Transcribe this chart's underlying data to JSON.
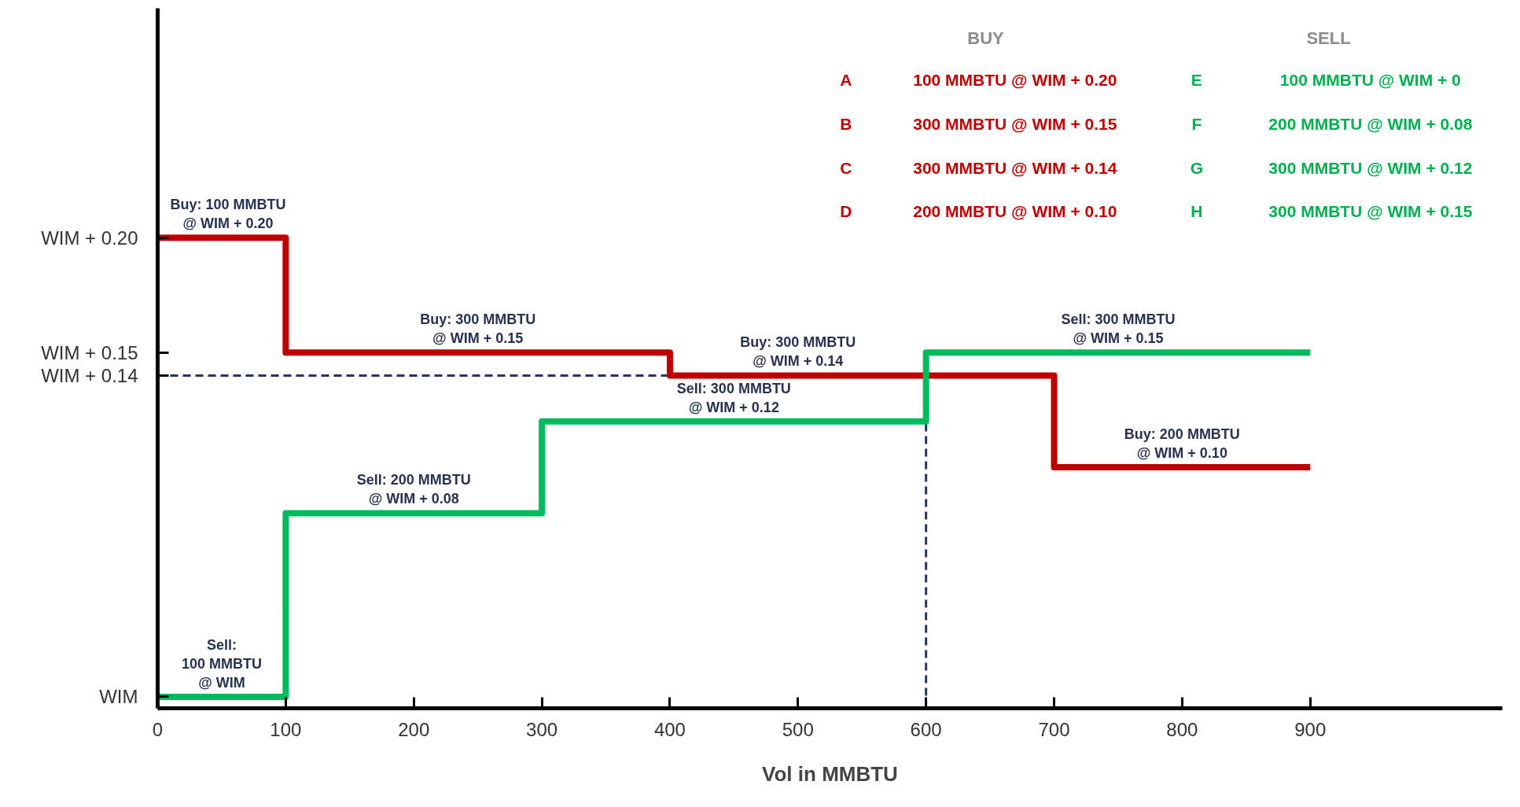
{
  "chart_data": [
    {
      "type": "step",
      "xlabel": "Vol in MMBTU",
      "xlim": [
        0,
        1050
      ],
      "ylim": [
        -0.005,
        0.3
      ],
      "xticks": [
        0,
        100,
        200,
        300,
        400,
        500,
        700,
        800,
        900
      ],
      "yticks": [
        {
          "value": 0,
          "label": "WIM"
        },
        {
          "value": 0.15,
          "label": "WIM + 0.15"
        },
        {
          "value": 0.2,
          "label": "WIM + 0.20"
        }
      ],
      "grid": false,
      "series": [
        {
          "color": "#c00000",
          "x": [
            0,
            100,
            400,
            700,
            900
          ],
          "values": [
            0.2,
            0.15,
            0.14,
            0.1,
            0.1
          ]
        },
        {
          "color": "#00bb5e",
          "x": [
            0,
            100,
            300,
            600,
            900
          ],
          "values": [
            0,
            0.08,
            0.12,
            0.15,
            0.15
          ]
        }
      ],
      "ref_lines": [
        {
          "axis": "y",
          "value": 0.14,
          "label": "WIM + 0.14",
          "color": "#1f3864",
          "line_style": "dashed"
        },
        {
          "axis": "x",
          "value": 600,
          "label": "600",
          "color": "#1f3864",
          "line_style": "dashed"
        }
      ],
      "annotations": [
        {
          "text": "Buy: 100 MMBTU\n@ WIM + 0.20",
          "x": 55,
          "y": 0.2
        },
        {
          "text": "Buy: 300 MMBTU\n@ WIM + 0.15",
          "x": 250,
          "y": 0.15
        },
        {
          "text": "Buy: 300 MMBTU\n@ WIM + 0.14",
          "x": 500,
          "y": 0.14
        },
        {
          "text": "Buy: 200 MMBTU\n@ WIM + 0.10",
          "x": 800,
          "y": 0.1
        },
        {
          "text": "Sell:\n100 MMBTU\n@ WIM",
          "x": 50,
          "y": 0
        },
        {
          "text": "Sell: 200 MMBTU\n@ WIM + 0.08",
          "x": 200,
          "y": 0.08
        },
        {
          "text": "Sell: 300 MMBTU\n@ WIM + 0.12",
          "x": 450,
          "y": 0.12
        },
        {
          "text": "Sell: 300 MMBTU\n@ WIM + 0.15",
          "x": 750,
          "y": 0.15
        }
      ]
    },
    {
      "type": "other",
      "categories": [
        "BUY",
        "SELL"
      ],
      "colors": [
        "#c00000",
        "#00b050"
      ],
      "annotations": [
        "A",
        "100 MMBTU @ WIM + 0.20",
        "E",
        "100 MMBTU @ WIM + 0",
        "B",
        "300 MMBTU @ WIM + 0.15",
        "F",
        "200 MMBTU @ WIM + 0.08",
        "C",
        "300 MMBTU @ WIM + 0.14",
        "G",
        "300 MMBTU @ WIM + 0.12",
        "D",
        "200 MMBTU @ WIM + 0.10",
        "H",
        "300 MMBTU @ WIM + 0.15"
      ]
    }
  ]
}
